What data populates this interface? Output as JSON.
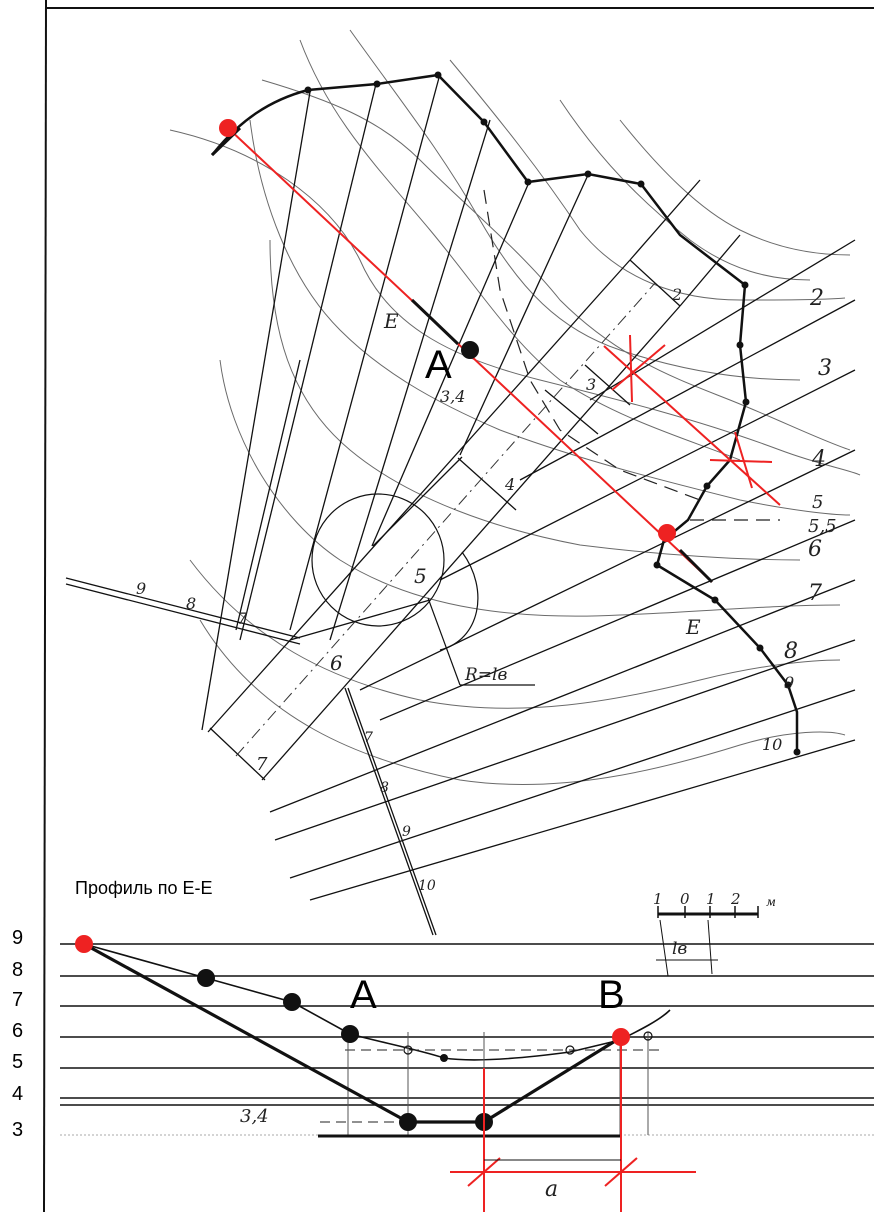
{
  "profile_title": "Профиль по E-E",
  "profile_levels": [
    "9",
    "8",
    "7",
    "6",
    "5",
    "4",
    "3"
  ],
  "point_labels": {
    "a": "A",
    "b": "B"
  },
  "section_marker": "E",
  "annotation_34": "3,4",
  "radius_label": "R=lв",
  "dim_label": "a",
  "scale": {
    "ticks": [
      "1",
      "0",
      "1",
      "2"
    ],
    "unit": "м",
    "label": "lв"
  },
  "contour_labels": [
    "2",
    "3",
    "4",
    "5",
    "5,5",
    "6",
    "7",
    "8",
    "9",
    "10"
  ],
  "axis_numbers": [
    "2",
    "3",
    "4",
    "5",
    "6",
    "7"
  ],
  "left_numbers": [
    "9",
    "8",
    "7"
  ],
  "lower_numbers": [
    "7",
    "8",
    "9",
    "10"
  ],
  "colors": {
    "ink": "#111111",
    "red": "#ee2222",
    "pencil": "#555555",
    "faint": "#8a8a8a"
  }
}
